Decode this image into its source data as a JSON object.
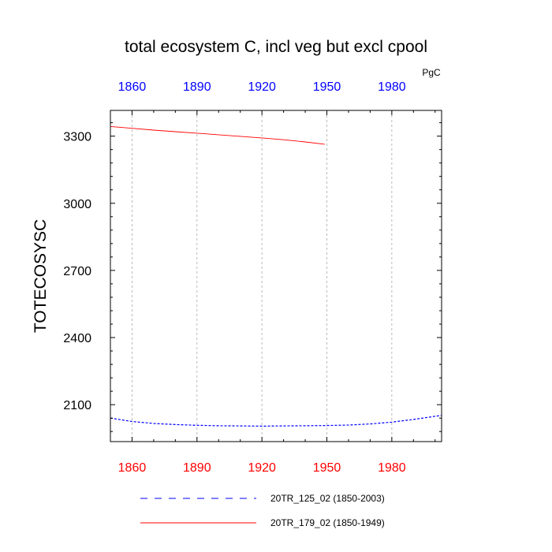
{
  "chart_data": {
    "type": "line",
    "title": "total ecosystem C, incl veg but excl cpool",
    "units": "PgC",
    "ylabel": "TOTECOSYSC",
    "xlabel": "",
    "xlim": [
      1850,
      2003
    ],
    "ylim": [
      1935,
      3415
    ],
    "x_ticks": [
      1860,
      1890,
      1920,
      1950,
      1980
    ],
    "x_tick_labels": [
      "1860",
      "1890",
      "1920",
      "1950",
      "1980"
    ],
    "y_ticks": [
      2100,
      2400,
      2700,
      3000,
      3300
    ],
    "y_tick_labels": [
      "2100",
      "2400",
      "2700",
      "3000",
      "3300"
    ],
    "x_grid": true,
    "y_grid": false,
    "top_axis_color": "#0000ff",
    "bottom_axis_color": "#ff0000",
    "legend_position": "bottom",
    "series": [
      {
        "name": "20TR_125_02 (1850-2003)",
        "color": "#0000ff",
        "style": "dashed",
        "x": [
          1850,
          1860,
          1870,
          1880,
          1890,
          1900,
          1910,
          1920,
          1930,
          1940,
          1950,
          1960,
          1970,
          1980,
          1990,
          2000,
          2003
        ],
        "y": [
          2040,
          2025,
          2016,
          2011,
          2008,
          2006,
          2005,
          2004,
          2005,
          2006,
          2007,
          2009,
          2014,
          2022,
          2034,
          2048,
          2052
        ]
      },
      {
        "name": "20TR_179_02 (1850-1949)",
        "color": "#ff0000",
        "style": "solid",
        "x": [
          1850,
          1860,
          1870,
          1880,
          1890,
          1900,
          1910,
          1920,
          1930,
          1940,
          1949
        ],
        "y": [
          3343,
          3335,
          3327,
          3320,
          3313,
          3306,
          3299,
          3292,
          3284,
          3274,
          3264
        ]
      }
    ]
  }
}
